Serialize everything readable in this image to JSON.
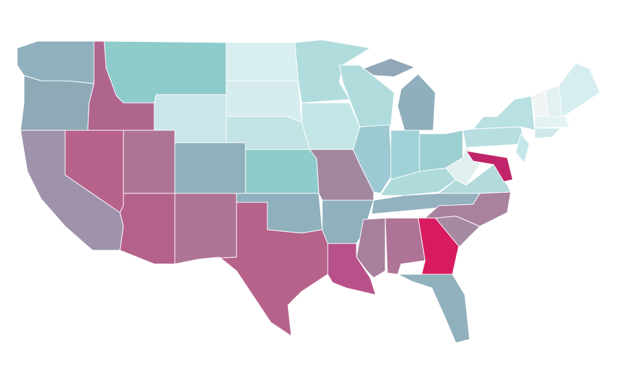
{
  "map": {
    "region_colors": [
      "#8fb0bc",
      "#8fa9b6",
      "#9f93ac",
      "#b0658f",
      "#8ecbcb",
      "#cae6e8",
      "#b6628b",
      "#af7495",
      "#8fb0bc",
      "#b4628b",
      "#af7495",
      "#d9eef0",
      "#d6ecee",
      "#c3e3e4",
      "#8ecbcb",
      "#8fb0bc",
      "#b6628b",
      "#b1dcde",
      "#c5e6e7",
      "#a1879f",
      "#8fb0bc",
      "#b8518a",
      "#b1dcde",
      "#9dc9d2",
      "#8fafbc",
      "#92a8b8",
      "#9fd2d6",
      "#9ccfd0",
      "#aedadc",
      "#93b1bf",
      "#a7809d",
      "#ae7396",
      "#d81b60",
      "#90b0bc",
      "#a58aa2",
      "#a8829e",
      "#b3dadc",
      "#e1efef",
      "#b7dee0",
      "#b9e0e2",
      "#c1246a",
      "#c4e6e8",
      "#f1f4f5",
      "#e3f1f2",
      "#d6eef0",
      "#e3f2f3",
      "#cfe9ea"
    ]
  }
}
